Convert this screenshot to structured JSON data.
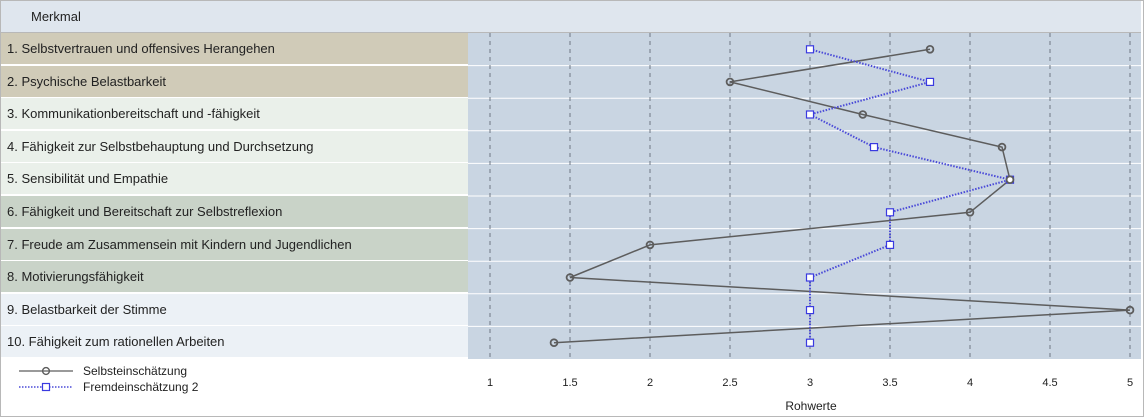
{
  "header": {
    "title": "Merkmal"
  },
  "colors": {
    "selbst_line": "#5d5d5d",
    "fremd_line": "#4a4ad8",
    "fremd_marker": "#3a3ae0",
    "plot_bg": "#c9d5e2",
    "row_bg": [
      "#d0cbb8",
      "#d0cbb8",
      "#eaf0ea",
      "#eaf0ea",
      "#eaf0ea",
      "#c9d3c8",
      "#c9d3c8",
      "#c9d3c8",
      "#ecf1f6",
      "#ecf1f6"
    ]
  },
  "chart_data": {
    "type": "line",
    "orientation": "horizontal-profile",
    "categories": [
      "1. Selbstvertrauen und offensives Herangehen",
      "2. Psychische Belastbarkeit",
      "3. Kommunikationbereitschaft und -fähigkeit",
      "4. Fähigkeit zur Selbstbehauptung und Durchsetzung",
      "5. Sensibilität und Empathie",
      "6. Fähigkeit und Bereitschaft zur Selbstreflexion",
      "7. Freude am Zusammensein mit Kindern und Jugendlichen",
      "8. Motivierungsfähigkeit",
      "9. Belastbarkeit der Stimme",
      "10. Fähigkeit zum rationellen Arbeiten"
    ],
    "series": [
      {
        "name": "Selbsteinschätzung",
        "marker": "circle",
        "line": "solid",
        "values": [
          3.75,
          2.5,
          3.33,
          4.2,
          4.25,
          4.0,
          2.0,
          1.5,
          5.0,
          1.4
        ]
      },
      {
        "name": "Fremdeinschätzung 2",
        "marker": "square",
        "line": "dotted",
        "values": [
          3.0,
          3.75,
          3.0,
          3.4,
          4.25,
          3.5,
          3.5,
          3.0,
          3.0,
          3.0
        ]
      }
    ],
    "xlabel": "Rohwerte",
    "xlim": [
      0.9,
      5.0
    ],
    "ticks": [
      "1",
      "1.5",
      "2",
      "2.5",
      "3",
      "3.5",
      "4",
      "4.5",
      "5"
    ],
    "grid": "vertical dashed",
    "legend": "bottom-left"
  }
}
